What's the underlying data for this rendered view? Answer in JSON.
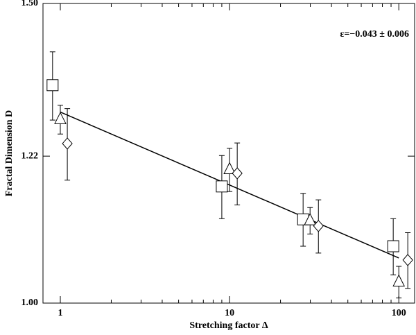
{
  "chart_data": {
    "type": "scatter",
    "x_label": "Stretching factor Δ",
    "y_label": "Fractal Dimension D",
    "annotation": "ε=−0.043 ± 0.006",
    "xlog": true,
    "ylog": true,
    "xlim": [
      0.79,
      124
    ],
    "ylim": [
      1.0,
      1.5
    ],
    "xticks": [
      1,
      10,
      100
    ],
    "xminorticks": [
      2,
      3,
      4,
      5,
      6,
      7,
      8,
      9,
      20,
      30,
      40,
      50,
      60,
      70,
      80,
      90
    ],
    "yticks": [
      {
        "value": 1.0,
        "label": "1.00"
      },
      1.22,
      {
        "value": 1.5,
        "label": "1.50"
      }
    ],
    "series": [
      {
        "marker": "square",
        "color": "#000000",
        "x": [
          0.9,
          9,
          27.2,
          92.7
        ],
        "values": [
          1.343,
          1.171,
          1.12,
          1.08
        ],
        "errors": [
          0.062,
          0.05,
          0.04,
          0.041
        ]
      },
      {
        "marker": "triangle",
        "color": "#000000",
        "x": [
          1,
          10,
          29.9,
          100
        ],
        "values": [
          1.282,
          1.198,
          1.118,
          1.029
        ],
        "errors": [
          0.025,
          0.035,
          0.02,
          0.022
        ]
      },
      {
        "marker": "diamond",
        "color": "#000000",
        "x": [
          1.1,
          11.1,
          33.5,
          113
        ],
        "values": [
          1.241,
          1.192,
          1.11,
          1.06
        ],
        "errors": [
          0.06,
          0.05,
          0.04,
          0.04
        ]
      }
    ],
    "fit": {
      "color": "#000000",
      "x": [
        1,
        100
      ],
      "values": [
        1.295,
        1.063
      ]
    }
  }
}
